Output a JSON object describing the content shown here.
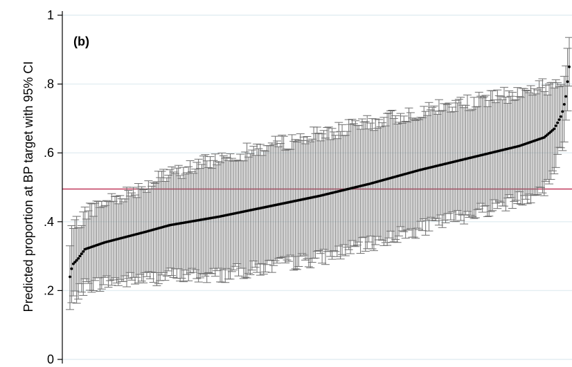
{
  "chart_data": {
    "type": "scatter",
    "subtype": "caterpillar plot with 95% CI error bars",
    "panel_label": "(b)",
    "ylabel": "Predicted proportion at BP target with 95% CI",
    "xlabel": "",
    "ylim": [
      0,
      1
    ],
    "yticks": [
      {
        "value": 0,
        "label": "0"
      },
      {
        "value": 0.2,
        "label": ".2"
      },
      {
        "value": 0.4,
        "label": ".4"
      },
      {
        "value": 0.6,
        "label": ".6"
      },
      {
        "value": 0.8,
        "label": ".8"
      },
      {
        "value": 1,
        "label": "1"
      }
    ],
    "grid": true,
    "reference_line": {
      "y": 0.495,
      "color": "#c0395a"
    },
    "n_points": 300,
    "estimate_percentiles": [
      {
        "p": 0.0,
        "value": 0.24
      },
      {
        "p": 0.005,
        "value": 0.275
      },
      {
        "p": 0.015,
        "value": 0.29
      },
      {
        "p": 0.03,
        "value": 0.32
      },
      {
        "p": 0.07,
        "value": 0.34
      },
      {
        "p": 0.15,
        "value": 0.37
      },
      {
        "p": 0.2,
        "value": 0.39
      },
      {
        "p": 0.3,
        "value": 0.415
      },
      {
        "p": 0.4,
        "value": 0.445
      },
      {
        "p": 0.5,
        "value": 0.475
      },
      {
        "p": 0.6,
        "value": 0.51
      },
      {
        "p": 0.7,
        "value": 0.55
      },
      {
        "p": 0.8,
        "value": 0.585
      },
      {
        "p": 0.9,
        "value": 0.62
      },
      {
        "p": 0.95,
        "value": 0.645
      },
      {
        "p": 0.97,
        "value": 0.67
      },
      {
        "p": 0.985,
        "value": 0.71
      },
      {
        "p": 0.993,
        "value": 0.76
      },
      {
        "p": 1.0,
        "value": 0.85
      }
    ],
    "ci_half_width_percentiles": [
      {
        "p": 0.0,
        "value": 0.1
      },
      {
        "p": 0.3,
        "value": 0.17
      },
      {
        "p": 0.5,
        "value": 0.18
      },
      {
        "p": 0.7,
        "value": 0.17
      },
      {
        "p": 0.95,
        "value": 0.15
      },
      {
        "p": 1.0,
        "value": 0.07
      }
    ],
    "colors": {
      "point": "#000000",
      "error_bar": "#6e6e6e",
      "grid": "#e3eef2",
      "axis": "#000000",
      "reference_line": "#c0395a"
    }
  }
}
